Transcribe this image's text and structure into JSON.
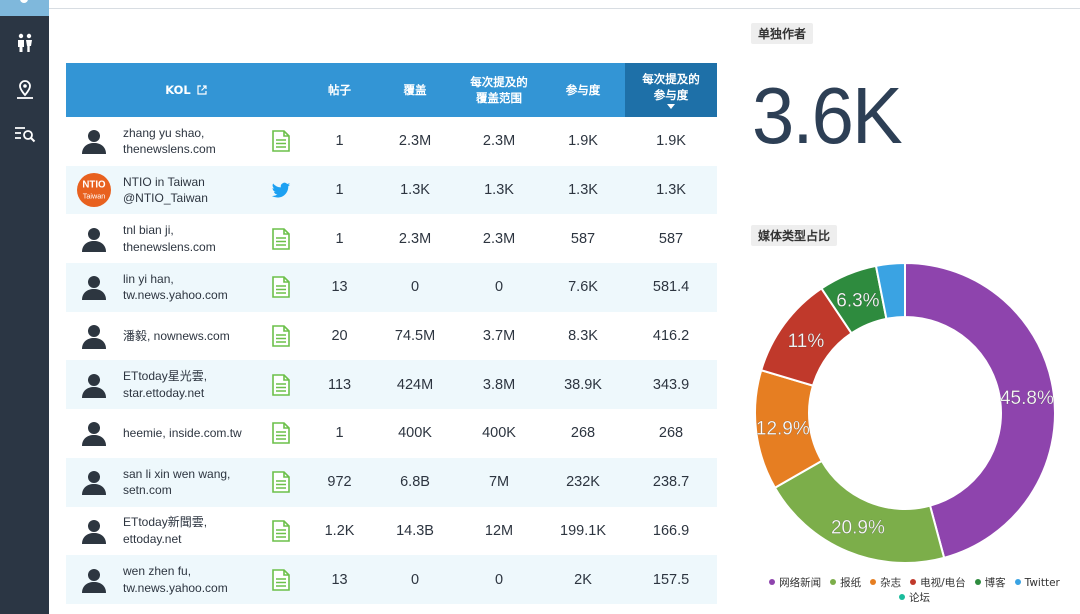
{
  "kol_table": {
    "headers": {
      "kol": "KOL",
      "posts": "帖子",
      "reach": "覆盖",
      "reach_per_mention": "每次提及的覆盖范围",
      "engagement": "参与度",
      "engagement_per_mention": "每次提及的参与度"
    },
    "rows": [
      {
        "name": "zhang yu shao,",
        "source": "thenewslens.com",
        "avatar": "person",
        "media": "document-icon",
        "posts": "1",
        "reach": "2.3M",
        "reach_per_mention": "2.3M",
        "engagement": "1.9K",
        "engagement_per_mention": "1.9K"
      },
      {
        "name": "NTIO in Taiwan",
        "source": "@NTIO_Taiwan",
        "avatar": "ntio-logo",
        "media": "twitter-icon",
        "posts": "1",
        "reach": "1.3K",
        "reach_per_mention": "1.3K",
        "engagement": "1.3K",
        "engagement_per_mention": "1.3K"
      },
      {
        "name": "tnl bian ji,",
        "source": "thenewslens.com",
        "avatar": "person",
        "media": "document-icon",
        "posts": "1",
        "reach": "2.3M",
        "reach_per_mention": "2.3M",
        "engagement": "587",
        "engagement_per_mention": "587"
      },
      {
        "name": "lin yi han,",
        "source": "tw.news.yahoo.com",
        "avatar": "person",
        "media": "document-icon",
        "posts": "13",
        "reach": "0",
        "reach_per_mention": "0",
        "engagement": "7.6K",
        "engagement_per_mention": "581.4"
      },
      {
        "name": "潘毅, nownews.com",
        "source": "",
        "avatar": "person",
        "media": "document-icon",
        "posts": "20",
        "reach": "74.5M",
        "reach_per_mention": "3.7M",
        "engagement": "8.3K",
        "engagement_per_mention": "416.2"
      },
      {
        "name": "ETtoday星光雲,",
        "source": "star.ettoday.net",
        "avatar": "person",
        "media": "document-icon",
        "posts": "113",
        "reach": "424M",
        "reach_per_mention": "3.8M",
        "engagement": "38.9K",
        "engagement_per_mention": "343.9"
      },
      {
        "name": "heemie, inside.com.tw",
        "source": "",
        "avatar": "person",
        "media": "document-icon",
        "posts": "1",
        "reach": "400K",
        "reach_per_mention": "400K",
        "engagement": "268",
        "engagement_per_mention": "268"
      },
      {
        "name": "san li xin wen wang,",
        "source": "setn.com",
        "avatar": "person",
        "media": "document-icon",
        "posts": "972",
        "reach": "6.8B",
        "reach_per_mention": "7M",
        "engagement": "232K",
        "engagement_per_mention": "238.7"
      },
      {
        "name": "ETtoday新聞雲,",
        "source": "ettoday.net",
        "avatar": "person",
        "media": "document-icon",
        "posts": "1.2K",
        "reach": "14.3B",
        "reach_per_mention": "12M",
        "engagement": "199.1K",
        "engagement_per_mention": "166.9"
      },
      {
        "name": "wen zhen fu,",
        "source": "tw.news.yahoo.com",
        "avatar": "person",
        "media": "document-icon",
        "posts": "13",
        "reach": "0",
        "reach_per_mention": "0",
        "engagement": "2K",
        "engagement_per_mention": "157.5"
      }
    ]
  },
  "kpi": {
    "label": "单独作者",
    "value": "3.6K"
  },
  "media_share": {
    "label": "媒体类型占比",
    "slices": [
      {
        "name": "网络新闻",
        "percent": 45.8,
        "text": "45.8%",
        "color": "#8e44ad"
      },
      {
        "name": "报纸",
        "percent": 20.9,
        "text": "20.9%",
        "color": "#7cae4a"
      },
      {
        "name": "杂志",
        "percent": 12.9,
        "text": "12.9%",
        "color": "#e67e22"
      },
      {
        "name": "电视/电台",
        "percent": 11.0,
        "text": "11%",
        "color": "#c0392b"
      },
      {
        "name": "博客",
        "percent": 6.3,
        "text": "6.3%",
        "color": "#2e8b3e"
      },
      {
        "name": "Twitter",
        "percent": 3.1,
        "text": "",
        "color": "#3aa3e3"
      },
      {
        "name": "论坛",
        "percent": 0.0,
        "text": "",
        "color": "#1abc9c"
      }
    ]
  },
  "colors": {
    "sidebar": "#2b3644",
    "header": "#3395d5",
    "header_sorted": "#1e70a8",
    "row_alt": "#eef8fc",
    "doc_icon": "#6cc04a",
    "twitter": "#1da1f2"
  },
  "sidebar": {
    "icons": [
      "user-icon",
      "people-icon",
      "location-pin-icon",
      "search-list-icon"
    ]
  }
}
